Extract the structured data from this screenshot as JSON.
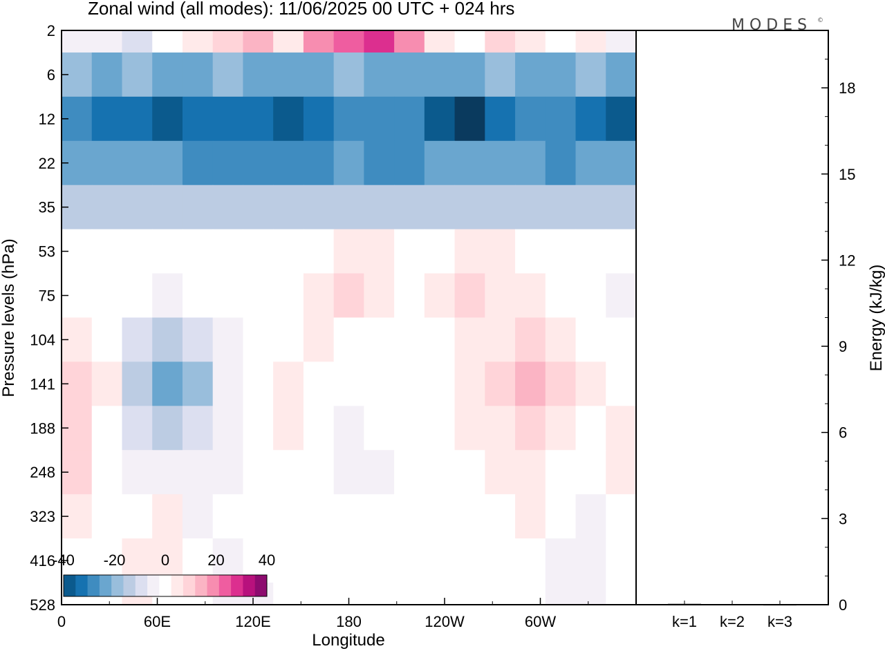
{
  "chart_data": [
    {
      "type": "heatmap",
      "title": "Zonal wind (all modes):  11/06/2025  00 UTC  + 024 hrs",
      "brand": "MODES",
      "brand_mark": "©",
      "xlabel": "Longitude",
      "ylabel": "Pressure levels (hPa)",
      "x_ticks": [
        {
          "lon": 0,
          "label": "0"
        },
        {
          "lon": 60,
          "label": "60E"
        },
        {
          "lon": 120,
          "label": "120E"
        },
        {
          "lon": 180,
          "label": "180"
        },
        {
          "lon": 240,
          "label": "120W"
        },
        {
          "lon": 300,
          "label": "60W"
        }
      ],
      "xlim": [
        0,
        360
      ],
      "y_levels": [
        "2",
        "6",
        "12",
        "22",
        "35",
        "53",
        "75",
        "104",
        "141",
        "188",
        "248",
        "323",
        "416",
        "528"
      ],
      "colorbar": {
        "labels": [
          "-40",
          "-20",
          "0",
          "20",
          "40"
        ],
        "label_values": [
          -40,
          -20,
          0,
          20,
          40
        ],
        "levels": [
          -45,
          -40,
          -35,
          -30,
          -25,
          -20,
          -15,
          -10,
          -5,
          0,
          5,
          10,
          15,
          20,
          25,
          30,
          35,
          40,
          45
        ],
        "colors": [
          "#0a3a5e",
          "#0b5a8d",
          "#1672b0",
          "#3f8cc0",
          "#6aa6cf",
          "#99bedc",
          "#bccce3",
          "#dcdff0",
          "#f4f0f7",
          "#ffffff",
          "#ffeaea",
          "#ffd4d9",
          "#fbb4c4",
          "#f78db0",
          "#ef5da0",
          "#dc2f8f",
          "#b8117d",
          "#8d0b6f",
          "#5a0060"
        ]
      },
      "field_bands": [
        {
          "level": "2",
          "values": [
            -5,
            -5,
            -10,
            0,
            5,
            10,
            15,
            5,
            20,
            25,
            30,
            20,
            5,
            0,
            10,
            5,
            0,
            5,
            -5
          ]
        },
        {
          "level": "6",
          "values": [
            -20,
            -25,
            -20,
            -25,
            -25,
            -20,
            -25,
            -25,
            -25,
            -20,
            -25,
            -25,
            -25,
            -25,
            -20,
            -25,
            -25,
            -20,
            -25
          ]
        },
        {
          "level": "12",
          "values": [
            -30,
            -35,
            -35,
            -40,
            -35,
            -35,
            -35,
            -40,
            -35,
            -30,
            -30,
            -30,
            -40,
            -45,
            -35,
            -30,
            -30,
            -35,
            -40
          ]
        },
        {
          "level": "22",
          "values": [
            -25,
            -25,
            -25,
            -25,
            -30,
            -30,
            -30,
            -30,
            -30,
            -25,
            -30,
            -30,
            -25,
            -25,
            -25,
            -25,
            -30,
            -25,
            -25
          ]
        },
        {
          "level": "35",
          "values": [
            -15,
            -15,
            -15,
            -15,
            -15,
            -15,
            -15,
            -15,
            -15,
            -15,
            -15,
            -15,
            -15,
            -15,
            -15,
            -15,
            -15,
            -15,
            -15
          ]
        },
        {
          "level": "53",
          "values": [
            0,
            0,
            0,
            0,
            0,
            0,
            0,
            0,
            0,
            5,
            5,
            0,
            0,
            5,
            5,
            0,
            0,
            0,
            0
          ]
        },
        {
          "level": "75",
          "values": [
            0,
            0,
            0,
            -5,
            0,
            0,
            0,
            0,
            5,
            10,
            5,
            0,
            5,
            10,
            5,
            5,
            0,
            0,
            -5
          ]
        },
        {
          "level": "104",
          "values": [
            5,
            0,
            -10,
            -15,
            -10,
            -5,
            0,
            0,
            5,
            0,
            0,
            0,
            0,
            5,
            5,
            10,
            5,
            0,
            0
          ]
        },
        {
          "level": "141",
          "values": [
            10,
            5,
            -15,
            -25,
            -20,
            -5,
            0,
            5,
            0,
            0,
            0,
            0,
            0,
            5,
            10,
            15,
            10,
            5,
            0
          ]
        },
        {
          "level": "188",
          "values": [
            10,
            0,
            -10,
            -15,
            -10,
            -5,
            0,
            5,
            0,
            -5,
            0,
            0,
            0,
            5,
            5,
            10,
            5,
            0,
            5
          ]
        },
        {
          "level": "248",
          "values": [
            10,
            0,
            -5,
            -5,
            -5,
            -5,
            0,
            0,
            0,
            -5,
            -5,
            0,
            0,
            0,
            5,
            5,
            0,
            0,
            5
          ]
        },
        {
          "level": "323",
          "values": [
            5,
            0,
            0,
            5,
            -5,
            0,
            0,
            0,
            0,
            0,
            0,
            0,
            0,
            0,
            0,
            5,
            0,
            -5,
            0
          ]
        },
        {
          "level": "416",
          "values": [
            0,
            0,
            5,
            5,
            0,
            -5,
            0,
            0,
            0,
            0,
            0,
            0,
            0,
            0,
            0,
            0,
            -5,
            -5,
            0
          ]
        },
        {
          "level": "528",
          "values": [
            0,
            0,
            5,
            0,
            0,
            -5,
            -5,
            0,
            0,
            0,
            0,
            0,
            0,
            0,
            0,
            0,
            -5,
            -5,
            0
          ]
        }
      ]
    },
    {
      "type": "bar",
      "ylabel": "Energy (kJ/kg)",
      "categories": [
        "k=1",
        "k=2",
        "k=3"
      ],
      "values": [
        0.03,
        0.02,
        0.01
      ],
      "y_ticks": [
        "0",
        "3",
        "6",
        "9",
        "12",
        "15",
        "18"
      ],
      "y_tick_values": [
        0,
        3,
        6,
        9,
        12,
        15,
        18
      ],
      "ylim": [
        0,
        20
      ]
    }
  ]
}
